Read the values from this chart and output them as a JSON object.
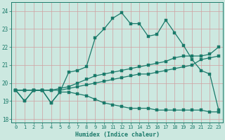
{
  "xlabel": "Humidex (Indice chaleur)",
  "bg_color": "#cce8e0",
  "line_color": "#1a7a6a",
  "xlim": [
    -0.5,
    23.5
  ],
  "ylim": [
    17.8,
    24.5
  ],
  "yticks": [
    18,
    19,
    20,
    21,
    22,
    23,
    24
  ],
  "xticks": [
    0,
    1,
    2,
    3,
    4,
    5,
    6,
    7,
    8,
    9,
    10,
    11,
    12,
    13,
    14,
    15,
    16,
    17,
    18,
    19,
    20,
    21,
    22,
    23
  ],
  "line_wavy_x": [
    0,
    1,
    2,
    3,
    4,
    5,
    6,
    7,
    8,
    9,
    10,
    11,
    12,
    13,
    14,
    15,
    16,
    17,
    18,
    19,
    20,
    21,
    22,
    23
  ],
  "line_wavy_y": [
    19.6,
    19.0,
    19.6,
    19.6,
    18.9,
    19.5,
    20.6,
    20.7,
    20.9,
    22.5,
    23.0,
    23.6,
    23.9,
    23.3,
    23.3,
    22.6,
    22.7,
    23.5,
    22.8,
    22.1,
    21.3,
    20.7,
    20.5,
    18.5
  ],
  "line_rise1_x": [
    0,
    1,
    2,
    3,
    4,
    5,
    6,
    7,
    8,
    9,
    10,
    11,
    12,
    13,
    14,
    15,
    16,
    17,
    18,
    19,
    20,
    21,
    22,
    23
  ],
  "line_rise1_y": [
    19.6,
    19.6,
    19.6,
    19.6,
    19.6,
    19.7,
    19.8,
    20.0,
    20.2,
    20.4,
    20.5,
    20.6,
    20.7,
    20.8,
    20.9,
    21.0,
    21.1,
    21.2,
    21.4,
    21.5,
    21.5,
    21.5,
    21.6,
    22.0
  ],
  "line_rise2_x": [
    0,
    1,
    2,
    3,
    4,
    5,
    6,
    7,
    8,
    9,
    10,
    11,
    12,
    13,
    14,
    15,
    16,
    17,
    18,
    19,
    20,
    21,
    22,
    23
  ],
  "line_rise2_y": [
    19.6,
    19.6,
    19.6,
    19.6,
    19.6,
    19.6,
    19.7,
    19.8,
    19.9,
    20.0,
    20.1,
    20.2,
    20.3,
    20.4,
    20.5,
    20.5,
    20.6,
    20.7,
    20.8,
    20.9,
    21.0,
    21.3,
    21.4,
    21.5
  ],
  "line_decline_x": [
    0,
    1,
    2,
    3,
    4,
    5,
    6,
    7,
    8,
    9,
    10,
    11,
    12,
    13,
    14,
    15,
    16,
    17,
    18,
    19,
    20,
    21,
    22,
    23
  ],
  "line_decline_y": [
    19.6,
    19.0,
    19.6,
    19.6,
    18.9,
    19.5,
    19.5,
    19.4,
    19.3,
    19.1,
    18.9,
    18.8,
    18.7,
    18.6,
    18.6,
    18.6,
    18.5,
    18.5,
    18.5,
    18.5,
    18.5,
    18.5,
    18.4,
    18.4
  ]
}
